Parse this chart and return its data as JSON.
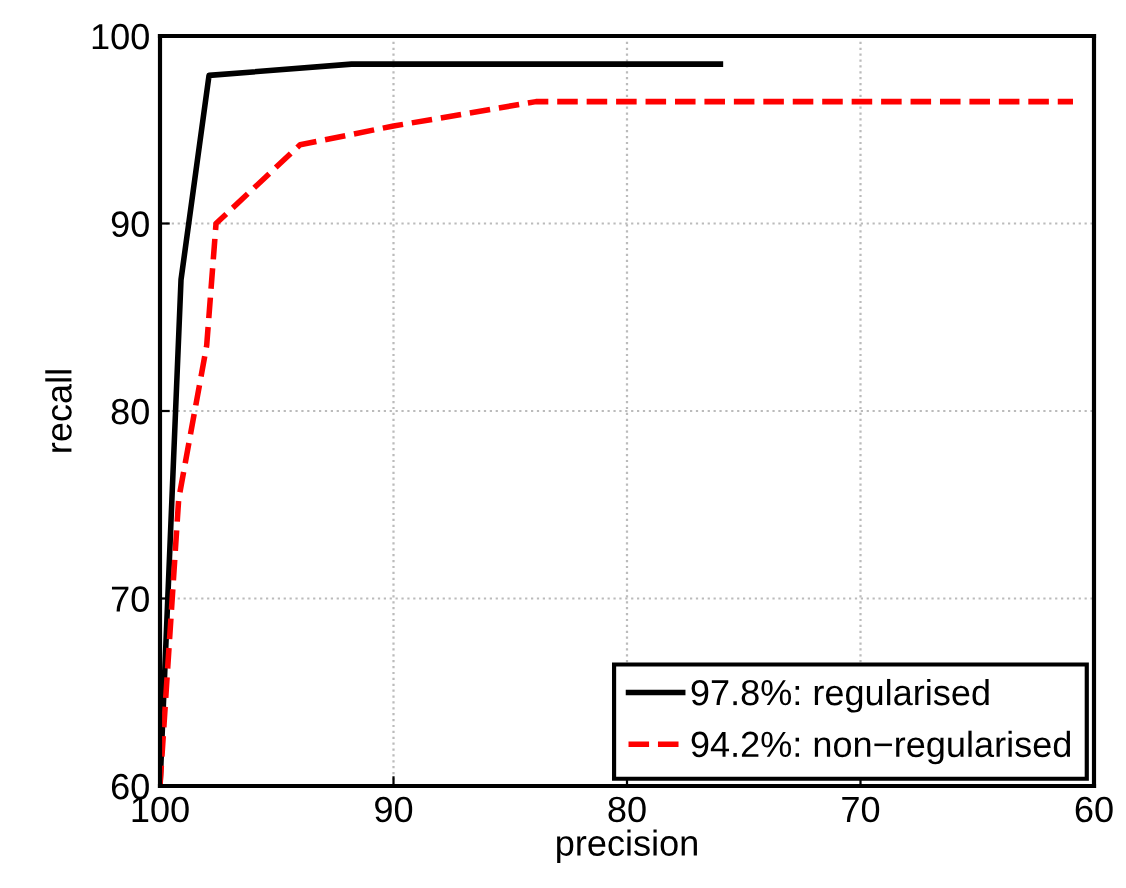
{
  "chart_data": {
    "type": "line",
    "xlabel": "precision",
    "ylabel": "recall",
    "xlim": [
      100,
      60
    ],
    "ylim": [
      60,
      100
    ],
    "xticks": [
      100,
      90,
      80,
      70,
      60
    ],
    "yticks": [
      60,
      70,
      80,
      90,
      100
    ],
    "grid": true,
    "legend": "bottom right",
    "series": [
      {
        "name": "97.8%: regularised",
        "color": "#000000",
        "line_style": "solid",
        "x": [
          100,
          99.1,
          97.9,
          91.8,
          76.0
        ],
        "values": [
          60,
          87,
          97.9,
          98.5,
          98.5
        ]
      },
      {
        "name": "94.2%: non−regularised",
        "color": "#ff0000",
        "line_style": "dashed",
        "x": [
          100,
          99.2,
          98.0,
          97.6,
          94.0,
          90.0,
          83.9,
          60.9
        ],
        "values": [
          60,
          75.3,
          83.5,
          90,
          94.2,
          95.2,
          96.5,
          96.5
        ]
      }
    ]
  }
}
